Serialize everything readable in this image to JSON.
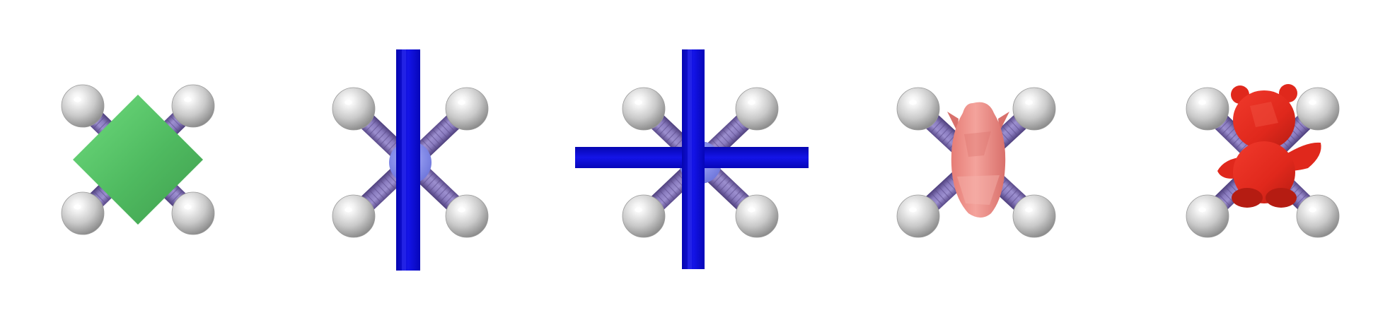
{
  "figure": {
    "background": "#ffffff",
    "panel_count": 5
  },
  "colors": {
    "atom_light": "#f4f4f4",
    "atom_mid": "#c9c9c9",
    "atom_dark": "#8c8c8c",
    "bond_light": "#9c8fcf",
    "bond_dark": "#5a4a8a",
    "bond_stripe": "#7b6aae",
    "center_atom": "#8a90ea",
    "green_shape": "#4fba60",
    "green_highlight": "#6fdc7e",
    "blue_bar": "#0a0ad6",
    "blue_bar_highlight": "#2f2ff0",
    "pig_shape": "#ef8f88",
    "pig_shade": "#d9706b",
    "bear_shape": "#e0281c",
    "bear_shade": "#b51c12"
  },
  "panels": [
    {
      "id": "panel-1",
      "overlay": "green-diamond"
    },
    {
      "id": "panel-2",
      "overlay": "vertical-blue-bar"
    },
    {
      "id": "panel-3",
      "overlay": "blue-cross"
    },
    {
      "id": "panel-4",
      "overlay": "pink-pig-figure"
    },
    {
      "id": "panel-5",
      "overlay": "red-teddy-bear-figure"
    }
  ]
}
